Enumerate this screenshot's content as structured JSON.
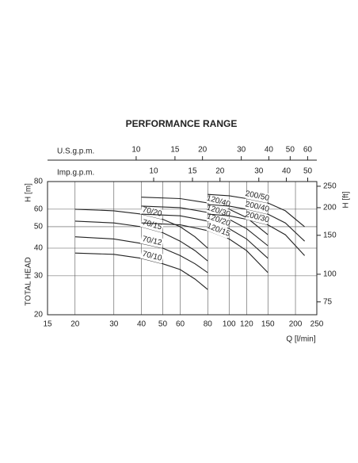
{
  "chart_data": {
    "type": "line",
    "title": "PERFORMANCE RANGE",
    "x_label": "Q [l/min]",
    "y_label": "H [m]",
    "y_title": "TOTAL HEAD",
    "y2_label": "H [ft]",
    "xscale": "log",
    "yscale": "log",
    "xlim": [
      15,
      250
    ],
    "xticks": [
      15,
      20,
      30,
      40,
      50,
      60,
      80,
      100,
      120,
      150,
      200,
      250
    ],
    "ylim": [
      20,
      80
    ],
    "yticks": [
      20,
      30,
      40,
      50,
      60,
      80
    ],
    "y2lim": [
      65.6,
      262.5
    ],
    "y2ticks": [
      75,
      100,
      150,
      200,
      250
    ],
    "grid": true,
    "top_axes": [
      {
        "label": "U.S.g.p.m.",
        "lim": [
          3.96,
          66.05
        ],
        "ticks": [
          10,
          15,
          20,
          30,
          40,
          50,
          60
        ]
      },
      {
        "label": "Imp.g.p.m.",
        "lim": [
          3.3,
          54.99
        ],
        "ticks": [
          10,
          15,
          20,
          30,
          40,
          50
        ]
      }
    ],
    "series": [
      {
        "name": "70/20",
        "color": "#222",
        "x": [
          20,
          30,
          40,
          50,
          60,
          70,
          80
        ],
        "values": [
          60,
          59,
          57,
          54,
          50,
          45,
          40
        ]
      },
      {
        "name": "70/15",
        "color": "#222",
        "x": [
          20,
          30,
          40,
          50,
          60,
          70,
          80
        ],
        "values": [
          53,
          52,
          50,
          47,
          43,
          39,
          35
        ]
      },
      {
        "name": "70/12",
        "color": "#222",
        "x": [
          20,
          30,
          40,
          50,
          60,
          70,
          80
        ],
        "values": [
          45,
          44,
          42,
          40,
          37,
          34,
          31
        ]
      },
      {
        "name": "70/10",
        "color": "#222",
        "x": [
          20,
          30,
          40,
          50,
          60,
          70,
          80
        ],
        "values": [
          38,
          37.5,
          36,
          34,
          32,
          29,
          26
        ]
      },
      {
        "name": "120/40",
        "color": "#222",
        "x": [
          40,
          60,
          80,
          100,
          120,
          150
        ],
        "values": [
          68,
          67,
          64,
          60,
          55,
          46
        ]
      },
      {
        "name": "120/30",
        "color": "#222",
        "x": [
          40,
          60,
          80,
          100,
          120,
          150
        ],
        "values": [
          62,
          61,
          58,
          54,
          49,
          41
        ]
      },
      {
        "name": "120/20",
        "color": "#222",
        "x": [
          40,
          60,
          80,
          100,
          120,
          150
        ],
        "values": [
          57,
          56,
          53,
          49,
          44,
          36
        ]
      },
      {
        "name": "120/15",
        "color": "#222",
        "x": [
          40,
          60,
          80,
          100,
          120,
          150
        ],
        "values": [
          52,
          51,
          48,
          44,
          39,
          31
        ]
      },
      {
        "name": "200/50",
        "color": "#222",
        "x": [
          80,
          100,
          120,
          150,
          180,
          220
        ],
        "values": [
          70,
          69,
          67,
          64,
          59,
          50
        ]
      },
      {
        "name": "200/40",
        "color": "#222",
        "x": [
          80,
          100,
          120,
          150,
          180,
          220
        ],
        "values": [
          63,
          62,
          60,
          57,
          52,
          43
        ]
      },
      {
        "name": "200/30",
        "color": "#222",
        "x": [
          80,
          100,
          120,
          150,
          180,
          220
        ],
        "values": [
          57,
          56,
          54,
          51,
          46,
          37
        ]
      }
    ]
  }
}
